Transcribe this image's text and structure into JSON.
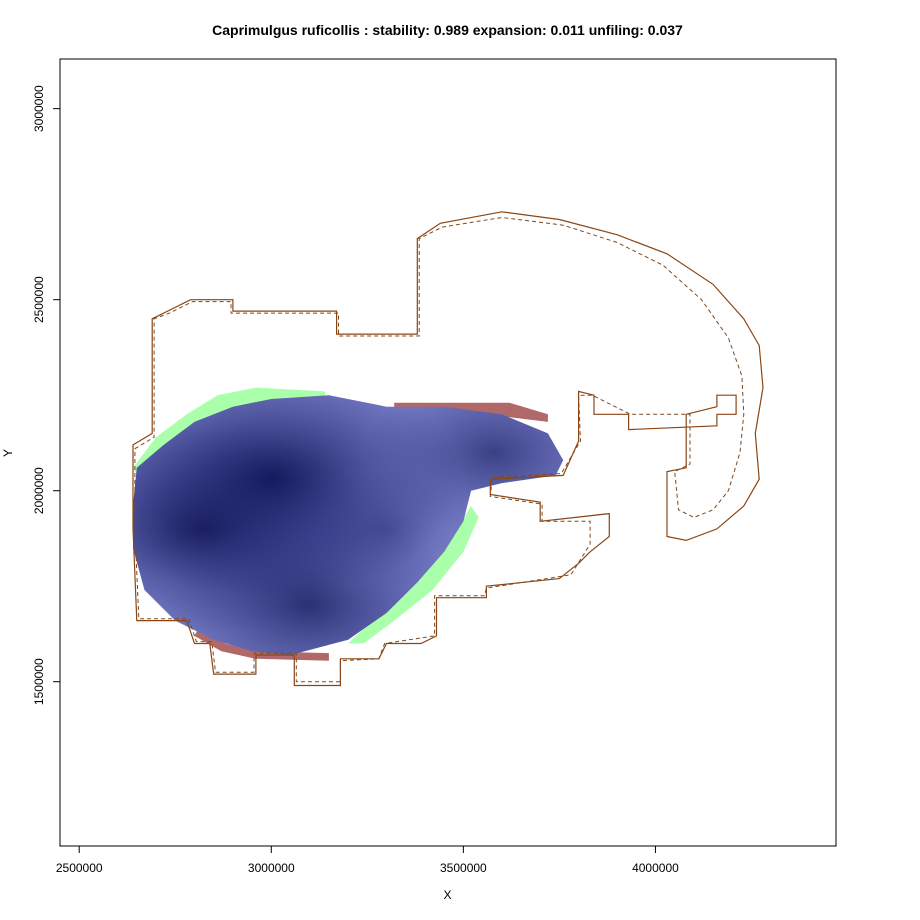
{
  "chart_data": {
    "type": "heatmap",
    "title": "Caprimulgus ruficollis : stability: 0.989 expansion: 0.011 unfiling: 0.037",
    "xlabel": "X",
    "ylabel": "Y",
    "xlim": [
      2450000,
      4470000
    ],
    "ylim": [
      1070000,
      3130000
    ],
    "x_ticks": [
      2500000,
      3000000,
      3500000,
      4000000
    ],
    "y_ticks": [
      1500000,
      2000000,
      2500000,
      3000000
    ],
    "x_tick_labels": [
      "2500000",
      "3000000",
      "3500000",
      "4000000"
    ],
    "y_tick_labels": [
      "1500000",
      "2000000",
      "2500000",
      "3000000"
    ],
    "grid": false,
    "legend": "none",
    "colors": {
      "stability": "#2a2e82",
      "stability_light": "#7a80c8",
      "expansion": "#aaffaa",
      "unfilling": "#b06868",
      "native_range_outline": "#8b4513",
      "projected_range_outline": "#7a4a20"
    },
    "stats": {
      "stability": 0.989,
      "expansion": 0.011,
      "unfiling": 0.037
    },
    "density_centers": [
      {
        "x": 3000000,
        "y": 2030000,
        "weight": 1.0
      },
      {
        "x": 2820000,
        "y": 1900000,
        "weight": 0.85
      },
      {
        "x": 3100000,
        "y": 1700000,
        "weight": 0.75
      },
      {
        "x": 3580000,
        "y": 2100000,
        "weight": 0.6
      },
      {
        "x": 3300000,
        "y": 1900000,
        "weight": 0.35
      }
    ],
    "stable_region": [
      [
        2650000,
        2060000
      ],
      [
        2720000,
        2120000
      ],
      [
        2800000,
        2180000
      ],
      [
        2900000,
        2220000
      ],
      [
        3000000,
        2240000
      ],
      [
        3150000,
        2250000
      ],
      [
        3300000,
        2220000
      ],
      [
        3450000,
        2220000
      ],
      [
        3600000,
        2200000
      ],
      [
        3720000,
        2150000
      ],
      [
        3760000,
        2080000
      ],
      [
        3740000,
        2040000
      ],
      [
        3600000,
        2020000
      ],
      [
        3520000,
        2000000
      ],
      [
        3500000,
        1920000
      ],
      [
        3450000,
        1840000
      ],
      [
        3380000,
        1760000
      ],
      [
        3300000,
        1680000
      ],
      [
        3200000,
        1610000
      ],
      [
        3050000,
        1570000
      ],
      [
        2950000,
        1580000
      ],
      [
        2850000,
        1610000
      ],
      [
        2750000,
        1660000
      ],
      [
        2670000,
        1740000
      ],
      [
        2640000,
        1850000
      ],
      [
        2640000,
        1960000
      ]
    ],
    "expansion_region": [
      [
        2640000,
        2060000
      ],
      [
        2700000,
        2140000
      ],
      [
        2780000,
        2200000
      ],
      [
        2860000,
        2250000
      ],
      [
        2960000,
        2270000
      ],
      [
        3140000,
        2260000
      ],
      [
        3140000,
        2240000
      ],
      [
        2960000,
        2230000
      ],
      [
        2870000,
        2200000
      ],
      [
        2780000,
        2140000
      ],
      [
        2700000,
        2080000
      ],
      [
        2650000,
        2040000
      ]
    ],
    "expansion_region_2": [
      [
        3520000,
        1960000
      ],
      [
        3460000,
        1860000
      ],
      [
        3380000,
        1770000
      ],
      [
        3300000,
        1690000
      ],
      [
        3220000,
        1620000
      ],
      [
        3200000,
        1600000
      ],
      [
        3240000,
        1600000
      ],
      [
        3320000,
        1660000
      ],
      [
        3420000,
        1740000
      ],
      [
        3500000,
        1840000
      ],
      [
        3540000,
        1930000
      ]
    ],
    "unfilling_region": [
      [
        3320000,
        2230000
      ],
      [
        3620000,
        2230000
      ],
      [
        3720000,
        2200000
      ],
      [
        3720000,
        2180000
      ],
      [
        3600000,
        2195000
      ],
      [
        3450000,
        2210000
      ],
      [
        3320000,
        2210000
      ]
    ],
    "unfilling_region_2": [
      [
        2800000,
        1620000
      ],
      [
        2870000,
        1580000
      ],
      [
        2960000,
        1560000
      ],
      [
        3150000,
        1555000
      ],
      [
        3150000,
        1575000
      ],
      [
        2960000,
        1580000
      ],
      [
        2880000,
        1600000
      ],
      [
        2810000,
        1640000
      ]
    ],
    "native_range_outline": [
      [
        2640000,
        2120000
      ],
      [
        2690000,
        2150000
      ],
      [
        2690000,
        2450000
      ],
      [
        2730000,
        2470000
      ],
      [
        2790000,
        2500000
      ],
      [
        2900000,
        2500000
      ],
      [
        2900000,
        2470000
      ],
      [
        3170000,
        2470000
      ],
      [
        3170000,
        2410000
      ],
      [
        3380000,
        2410000
      ],
      [
        3380000,
        2660000
      ],
      [
        3440000,
        2700000
      ],
      [
        3600000,
        2730000
      ],
      [
        3750000,
        2710000
      ],
      [
        3900000,
        2670000
      ],
      [
        4030000,
        2620000
      ],
      [
        4150000,
        2540000
      ],
      [
        4230000,
        2450000
      ],
      [
        4270000,
        2380000
      ],
      [
        4280000,
        2270000
      ],
      [
        4260000,
        2150000
      ],
      [
        4270000,
        2030000
      ],
      [
        4230000,
        1960000
      ],
      [
        4160000,
        1900000
      ],
      [
        4080000,
        1870000
      ],
      [
        4030000,
        1880000
      ],
      [
        4030000,
        2050000
      ],
      [
        4080000,
        2060000
      ],
      [
        4080000,
        2200000
      ],
      [
        4160000,
        2220000
      ],
      [
        4160000,
        2250000
      ],
      [
        4210000,
        2250000
      ],
      [
        4210000,
        2200000
      ],
      [
        4160000,
        2200000
      ],
      [
        4160000,
        2170000
      ],
      [
        3930000,
        2160000
      ],
      [
        3930000,
        2200000
      ],
      [
        3840000,
        2200000
      ],
      [
        3840000,
        2250000
      ],
      [
        3800000,
        2260000
      ],
      [
        3800000,
        2130000
      ],
      [
        3760000,
        2040000
      ],
      [
        3570000,
        2030000
      ],
      [
        3570000,
        1990000
      ],
      [
        3700000,
        1970000
      ],
      [
        3700000,
        1920000
      ],
      [
        3880000,
        1940000
      ],
      [
        3880000,
        1880000
      ],
      [
        3830000,
        1840000
      ],
      [
        3800000,
        1810000
      ],
      [
        3750000,
        1770000
      ],
      [
        3560000,
        1750000
      ],
      [
        3560000,
        1720000
      ],
      [
        3430000,
        1720000
      ],
      [
        3430000,
        1620000
      ],
      [
        3390000,
        1600000
      ],
      [
        3300000,
        1600000
      ],
      [
        3280000,
        1560000
      ],
      [
        3180000,
        1560000
      ],
      [
        3180000,
        1490000
      ],
      [
        3060000,
        1490000
      ],
      [
        3060000,
        1570000
      ],
      [
        2960000,
        1570000
      ],
      [
        2960000,
        1520000
      ],
      [
        2850000,
        1520000
      ],
      [
        2840000,
        1600000
      ],
      [
        2800000,
        1600000
      ],
      [
        2780000,
        1660000
      ],
      [
        2650000,
        1660000
      ],
      [
        2640000,
        1900000
      ]
    ],
    "projected_range_outline": [
      [
        2645000,
        2110000
      ],
      [
        2695000,
        2140000
      ],
      [
        2695000,
        2450000
      ],
      [
        2735000,
        2465000
      ],
      [
        2795000,
        2495000
      ],
      [
        2895000,
        2495000
      ],
      [
        2895000,
        2465000
      ],
      [
        3175000,
        2465000
      ],
      [
        3175000,
        2405000
      ],
      [
        3385000,
        2405000
      ],
      [
        3385000,
        2660000
      ],
      [
        3445000,
        2690000
      ],
      [
        3600000,
        2715000
      ],
      [
        3760000,
        2695000
      ],
      [
        3900000,
        2650000
      ],
      [
        4020000,
        2590000
      ],
      [
        4120000,
        2500000
      ],
      [
        4190000,
        2400000
      ],
      [
        4225000,
        2300000
      ],
      [
        4230000,
        2200000
      ],
      [
        4220000,
        2100000
      ],
      [
        4190000,
        2000000
      ],
      [
        4150000,
        1950000
      ],
      [
        4100000,
        1930000
      ],
      [
        4060000,
        1950000
      ],
      [
        4050000,
        2050000
      ],
      [
        4090000,
        2070000
      ],
      [
        4090000,
        2200000
      ],
      [
        3935000,
        2200000
      ],
      [
        3835000,
        2250000
      ],
      [
        3800000,
        2250000
      ],
      [
        3805000,
        2130000
      ],
      [
        3755000,
        2045000
      ],
      [
        3575000,
        2035000
      ],
      [
        3570000,
        1985000
      ],
      [
        3705000,
        1965000
      ],
      [
        3705000,
        1920000
      ],
      [
        3830000,
        1920000
      ],
      [
        3830000,
        1860000
      ],
      [
        3780000,
        1780000
      ],
      [
        3560000,
        1745000
      ],
      [
        3555000,
        1725000
      ],
      [
        3425000,
        1725000
      ],
      [
        3425000,
        1620000
      ],
      [
        3295000,
        1600000
      ],
      [
        3280000,
        1560000
      ],
      [
        3180000,
        1555000
      ],
      [
        3180000,
        1500000
      ],
      [
        3065000,
        1500000
      ],
      [
        3065000,
        1575000
      ],
      [
        2955000,
        1575000
      ],
      [
        2955000,
        1525000
      ],
      [
        2855000,
        1525000
      ],
      [
        2845000,
        1605000
      ],
      [
        2805000,
        1605000
      ],
      [
        2785000,
        1665000
      ],
      [
        2655000,
        1665000
      ],
      [
        2645000,
        1900000
      ]
    ]
  }
}
